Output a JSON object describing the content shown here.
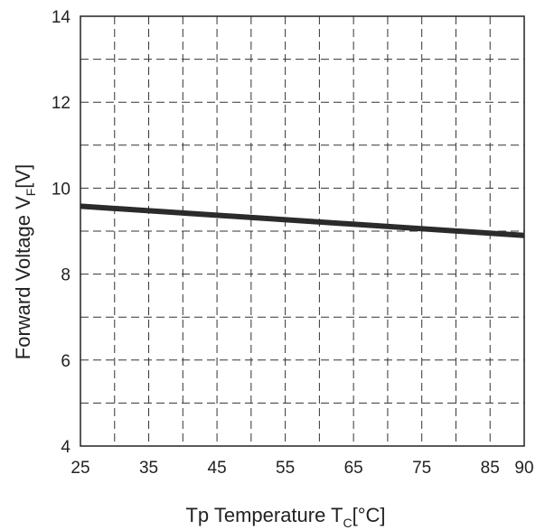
{
  "chart_data": {
    "type": "line",
    "xlabel": {
      "prefix": "Tp Temperature T",
      "sub": "C",
      "suffix": "[°C]"
    },
    "ylabel": {
      "prefix": "Forward Voltage V",
      "sub": "F",
      "suffix": "[V]"
    },
    "xlim": [
      25,
      90
    ],
    "ylim": [
      4,
      14
    ],
    "x_ticks": [
      25,
      35,
      45,
      55,
      65,
      75,
      85,
      90
    ],
    "y_ticks": [
      4,
      6,
      8,
      10,
      12,
      14
    ],
    "x_grid": [
      30,
      35,
      40,
      45,
      50,
      55,
      60,
      65,
      70,
      75,
      80,
      85
    ],
    "y_grid": [
      5,
      6,
      7,
      8,
      9,
      10,
      11,
      12,
      13
    ],
    "grid": true,
    "series": [
      {
        "x": [
          25,
          90
        ],
        "y": [
          9.58,
          8.9
        ]
      }
    ],
    "colors": {
      "line": "#2b2b2b",
      "grid": "#333333",
      "axis": "#222222"
    }
  }
}
